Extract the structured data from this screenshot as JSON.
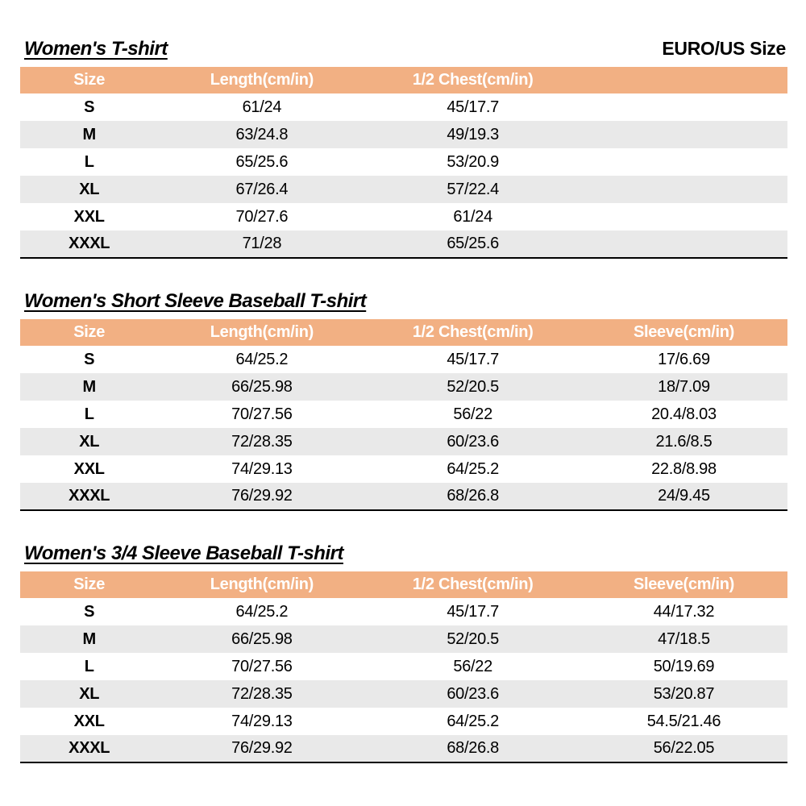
{
  "header": {
    "size_standard_label": "EURO/US Size"
  },
  "colors": {
    "header_bg": "#F2B083",
    "stripe_bg": "#E9E9E9",
    "header_text": "#FFFFFF",
    "border": "#000000"
  },
  "tables": [
    {
      "title": "Women's T-shirt",
      "columns": [
        "Size",
        "Length(cm/in)",
        "1/2 Chest(cm/in)",
        ""
      ],
      "rows": [
        [
          "S",
          "61/24",
          "45/17.7",
          ""
        ],
        [
          "M",
          "63/24.8",
          "49/19.3",
          ""
        ],
        [
          "L",
          "65/25.6",
          "53/20.9",
          ""
        ],
        [
          "XL",
          "67/26.4",
          "57/22.4",
          ""
        ],
        [
          "XXL",
          "70/27.6",
          "61/24",
          ""
        ],
        [
          "XXXL",
          "71/28",
          "65/25.6",
          ""
        ]
      ]
    },
    {
      "title": "Women's Short Sleeve Baseball T-shirt",
      "columns": [
        "Size",
        "Length(cm/in)",
        "1/2 Chest(cm/in)",
        "Sleeve(cm/in)"
      ],
      "rows": [
        [
          "S",
          "64/25.2",
          "45/17.7",
          "17/6.69"
        ],
        [
          "M",
          "66/25.98",
          "52/20.5",
          "18/7.09"
        ],
        [
          "L",
          "70/27.56",
          "56/22",
          "20.4/8.03"
        ],
        [
          "XL",
          "72/28.35",
          "60/23.6",
          "21.6/8.5"
        ],
        [
          "XXL",
          "74/29.13",
          "64/25.2",
          "22.8/8.98"
        ],
        [
          "XXXL",
          "76/29.92",
          "68/26.8",
          "24/9.45"
        ]
      ]
    },
    {
      "title": "Women's 3/4 Sleeve Baseball T-shirt",
      "columns": [
        "Size",
        "Length(cm/in)",
        "1/2 Chest(cm/in)",
        "Sleeve(cm/in)"
      ],
      "rows": [
        [
          "S",
          "64/25.2",
          "45/17.7",
          "44/17.32"
        ],
        [
          "M",
          "66/25.98",
          "52/20.5",
          "47/18.5"
        ],
        [
          "L",
          "70/27.56",
          "56/22",
          "50/19.69"
        ],
        [
          "XL",
          "72/28.35",
          "60/23.6",
          "53/20.87"
        ],
        [
          "XXL",
          "74/29.13",
          "64/25.2",
          "54.5/21.46"
        ],
        [
          "XXXL",
          "76/29.92",
          "68/26.8",
          "56/22.05"
        ]
      ]
    }
  ]
}
